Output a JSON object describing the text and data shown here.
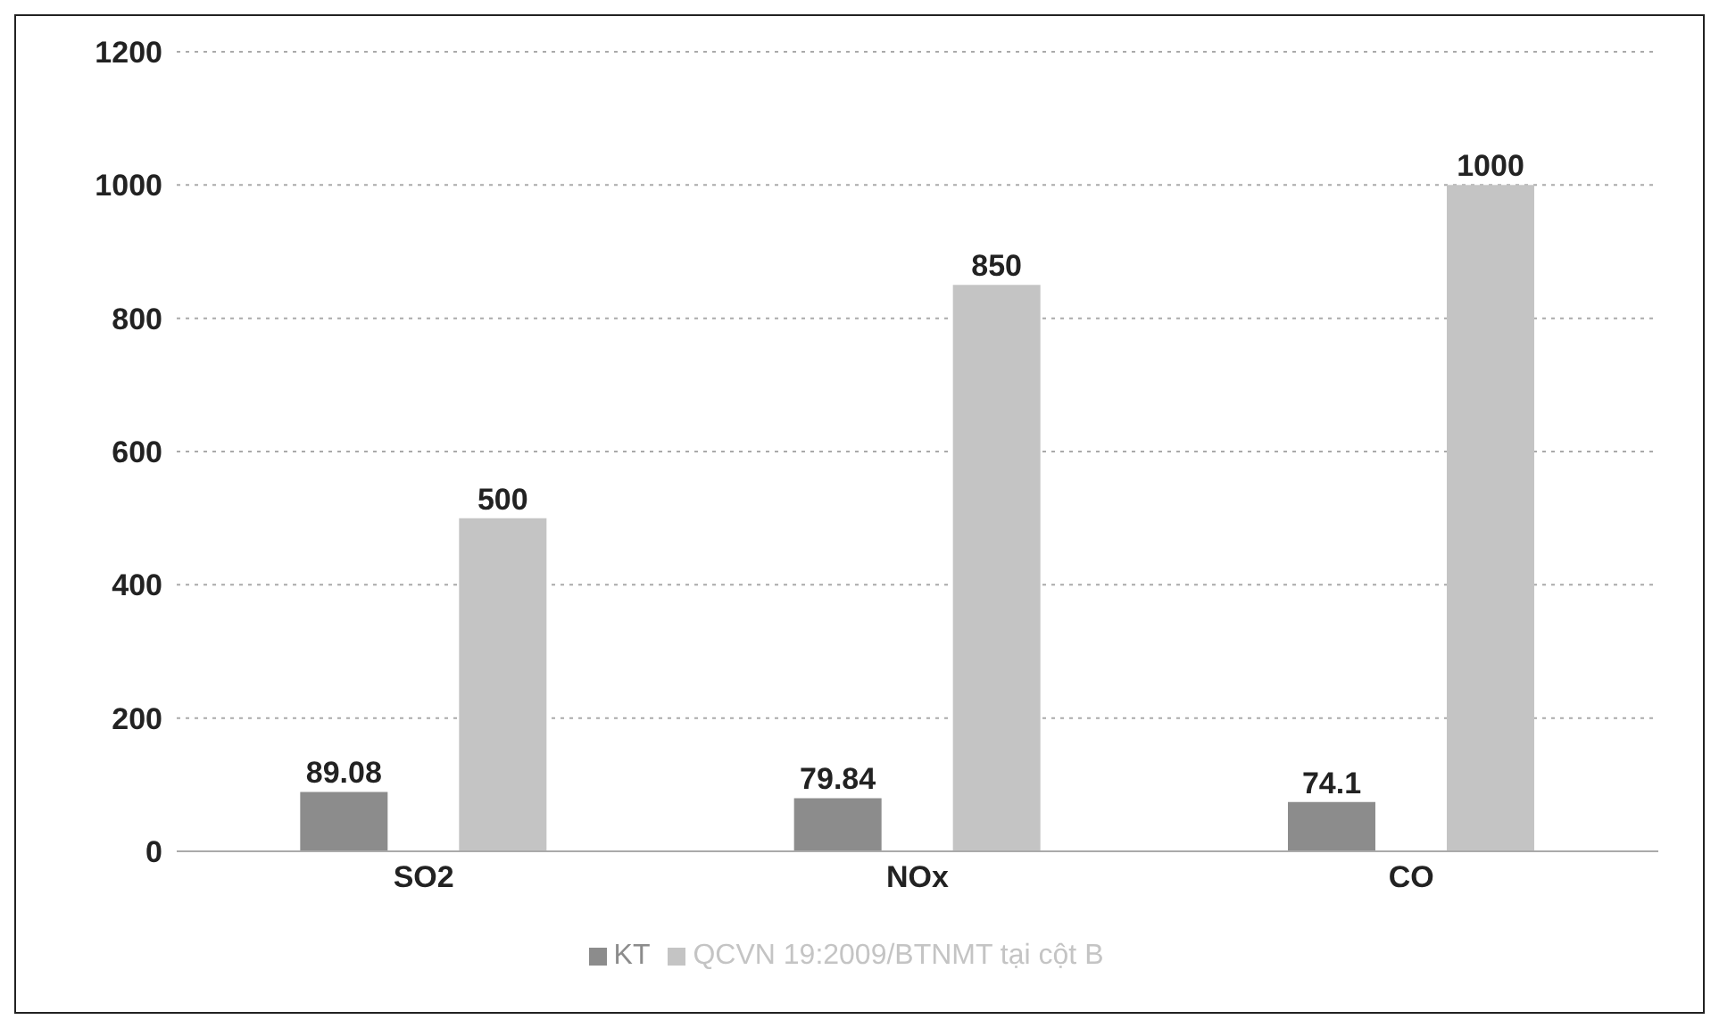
{
  "chart_data": {
    "type": "bar",
    "categories": [
      "SO2",
      "NOx",
      "CO"
    ],
    "series": [
      {
        "name": "KT",
        "color": "#8c8c8c",
        "values": [
          89.08,
          79.84,
          74.1
        ]
      },
      {
        "name": "QCVN 19:2009/BTNMT tại cột B",
        "color": "#c4c4c4",
        "values": [
          500,
          850,
          1000
        ]
      }
    ],
    "ylim": [
      0,
      1200
    ],
    "yticks": [
      0,
      200,
      400,
      600,
      800,
      1000,
      1200
    ],
    "grid": "y",
    "legend": "bottom",
    "data_labels": true
  }
}
